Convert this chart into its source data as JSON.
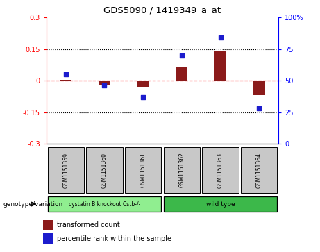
{
  "title": "GDS5090 / 1419349_a_at",
  "samples": [
    "GSM1151359",
    "GSM1151360",
    "GSM1151361",
    "GSM1151362",
    "GSM1151363",
    "GSM1151364"
  ],
  "transformed_count": [
    0.003,
    -0.018,
    -0.032,
    0.068,
    0.143,
    -0.068
  ],
  "percentile_rank": [
    55,
    46,
    37,
    70,
    84,
    28
  ],
  "ylim_left": [
    -0.3,
    0.3
  ],
  "ylim_right": [
    0,
    100
  ],
  "yticks_left": [
    -0.3,
    -0.15,
    0.0,
    0.15,
    0.3
  ],
  "yticks_right": [
    0,
    25,
    50,
    75,
    100
  ],
  "bar_color": "#8B1A1A",
  "dot_color": "#1C1CCD",
  "hline_color": "#FF3333",
  "dotline_color": "#000000",
  "group1_label": "cystatin B knockout Cstb-/-",
  "group2_label": "wild type",
  "group1_color": "#90EE90",
  "group2_color": "#3CB84A",
  "genotype_label": "genotype/variation",
  "legend_bar_label": "transformed count",
  "legend_dot_label": "percentile rank within the sample",
  "sample_box_color": "#C8C8C8",
  "bar_width": 0.3,
  "dot_size": 25
}
